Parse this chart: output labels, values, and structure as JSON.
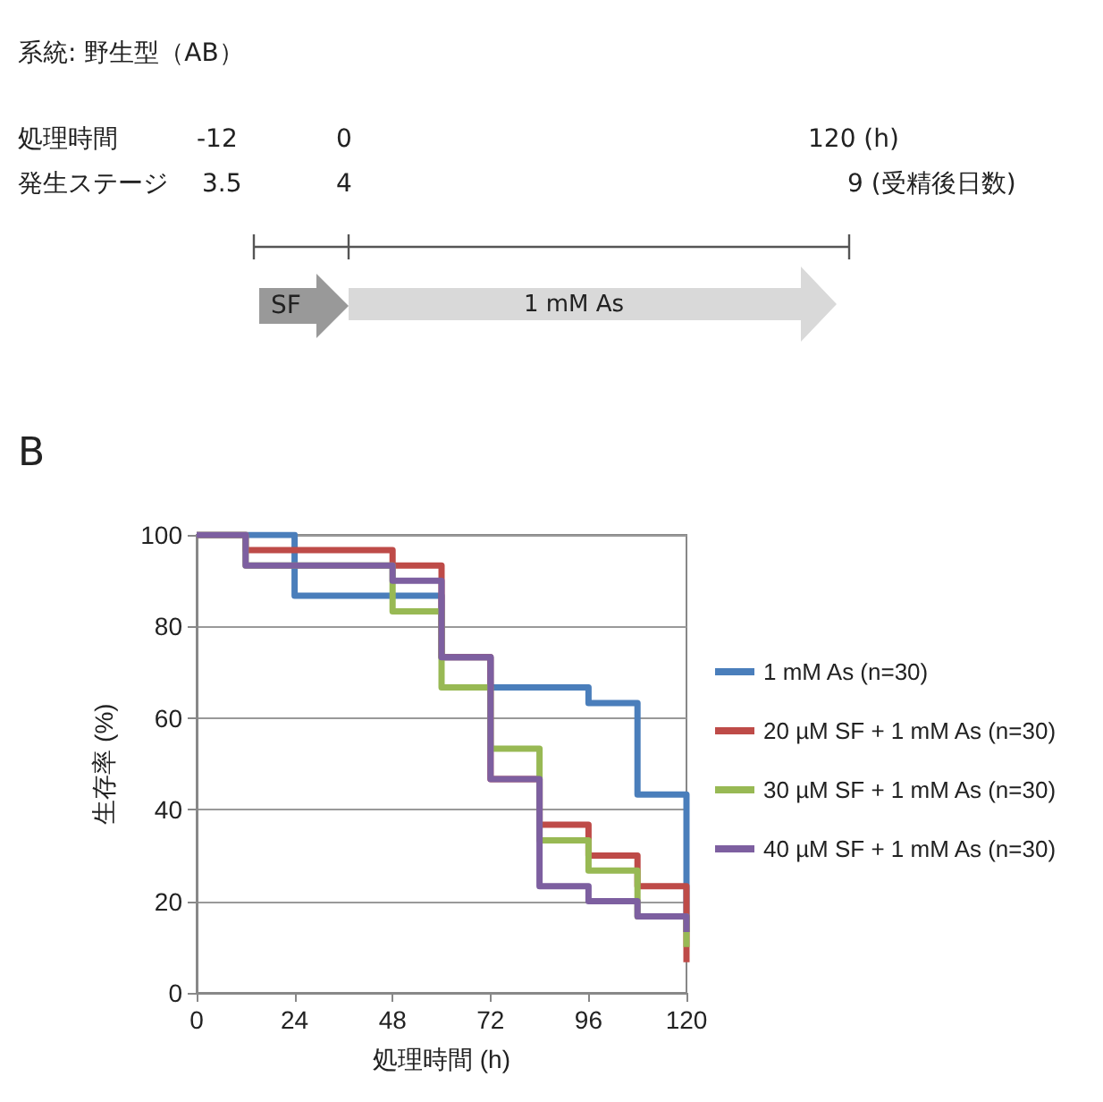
{
  "chart_data": {
    "type": "step",
    "xlabel": "処理時間 (h)",
    "ylabel": "生存率 (%)",
    "xlim": [
      0,
      120
    ],
    "xticks": [
      0,
      24,
      48,
      72,
      96,
      120
    ],
    "ylim": [
      0,
      100
    ],
    "yticks": [
      0,
      20,
      40,
      60,
      80,
      100
    ],
    "grid": "y",
    "legend": "right",
    "marker": "none",
    "annotations": [
      "系統: 野生型（AB）",
      "処理時間",
      "-12",
      "0",
      "120 (h)",
      "発生ステージ",
      "3.5",
      "4",
      "9  (受精後日数)",
      "SF",
      "1 mM As",
      "B"
    ],
    "series": [
      {
        "name": "1 mM As (n=30)",
        "color": "#4a7ebb",
        "x": [
          0,
          24,
          60,
          72,
          96,
          108,
          120
        ],
        "values": [
          100,
          86.7,
          73.3,
          66.7,
          63.3,
          43.3,
          13.3
        ]
      },
      {
        "name": "20 µM SF + 1 mM As (n=30)",
        "color": "#be4b48",
        "x": [
          0,
          12,
          48,
          60,
          72,
          84,
          96,
          108,
          120
        ],
        "values": [
          100,
          96.7,
          93.3,
          73.3,
          46.7,
          36.7,
          30,
          23.3,
          6.7
        ]
      },
      {
        "name": "30 µM SF + 1 mM As (n=30)",
        "color": "#98b954",
        "x": [
          0,
          12,
          48,
          60,
          72,
          84,
          96,
          108,
          120
        ],
        "values": [
          100,
          93.3,
          83.3,
          66.7,
          53.3,
          33.3,
          26.7,
          16.7,
          10
        ]
      },
      {
        "name": "40 µM SF + 1 mM As (n=30)",
        "color": "#7d5fa0",
        "x": [
          0,
          12,
          48,
          60,
          72,
          84,
          96,
          108,
          120
        ],
        "values": [
          100,
          93.3,
          90,
          73.3,
          46.7,
          23.3,
          20,
          16.7,
          13.3
        ]
      }
    ]
  }
}
